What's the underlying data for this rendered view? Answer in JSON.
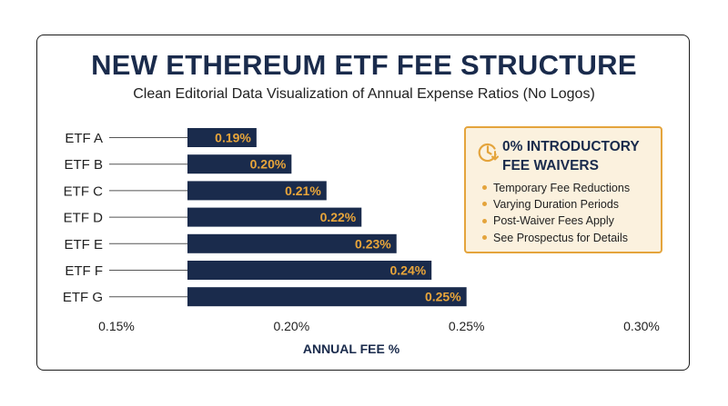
{
  "chart_data": {
    "type": "bar",
    "orientation": "horizontal",
    "title": "NEW ETHEREUM ETF FEE STRUCTURE",
    "subtitle": "Clean Editorial Data Visualization of Annual Expense Ratios (No Logos)",
    "xlabel": "ANNUAL FEE %",
    "ylabel": "",
    "categories": [
      "ETF A",
      "ETF B",
      "ETF C",
      "ETF D",
      "ETF E",
      "ETF F",
      "ETF G"
    ],
    "values": [
      0.19,
      0.2,
      0.21,
      0.22,
      0.23,
      0.24,
      0.25
    ],
    "data_labels": [
      "0.19%",
      "0.20%",
      "0.21%",
      "0.22%",
      "0.23%",
      "0.24%",
      "0.25%"
    ],
    "xlim": [
      0.15,
      0.3
    ],
    "xticks": [
      0.15,
      0.2,
      0.25,
      0.3
    ],
    "xtick_labels": [
      "0.15%",
      "0.20%",
      "0.25%",
      "0.30%"
    ],
    "grid": false,
    "legend": false,
    "colors": {
      "bar": "#1a2b4c",
      "data_label": "#e8a53a",
      "title": "#1a2b4c",
      "accent": "#e4a43c"
    }
  },
  "callout": {
    "icon": "clock-down-arrow-icon",
    "title_line1": "0% INTRODUCTORY",
    "title_line2": "FEE WAIVERS",
    "items": [
      "Temporary Fee Reductions",
      "Varying Duration Periods",
      "Post-Waiver Fees Apply",
      "See Prospectus for Details"
    ]
  }
}
